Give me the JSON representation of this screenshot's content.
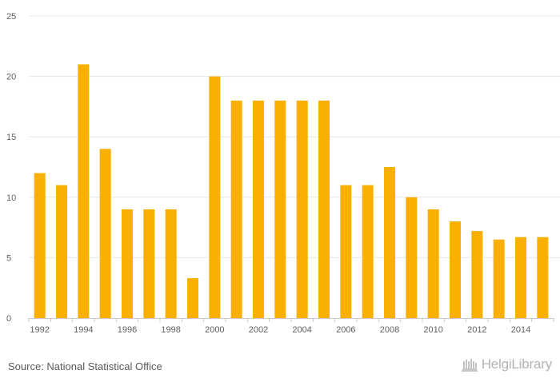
{
  "chart_data": {
    "type": "bar",
    "categories": [
      "1992",
      "1993",
      "1994",
      "1995",
      "1996",
      "1997",
      "1998",
      "1999",
      "2000",
      "2001",
      "2002",
      "2003",
      "2004",
      "2005",
      "2006",
      "2007",
      "2008",
      "2009",
      "2010",
      "2011",
      "2012",
      "2013",
      "2014",
      "2015"
    ],
    "values": [
      12,
      11,
      21,
      14,
      9,
      9,
      9,
      3.3,
      20,
      18,
      18,
      18,
      18,
      18,
      11,
      11,
      12.5,
      10,
      9,
      8,
      7.2,
      6.5,
      6.7,
      6.7
    ],
    "x_tick_labels": [
      "1992",
      "1994",
      "1996",
      "1998",
      "2000",
      "2002",
      "2004",
      "2006",
      "2008",
      "2010",
      "2012",
      "2014"
    ],
    "y_ticks": [
      0,
      5,
      10,
      15,
      20,
      25
    ],
    "ylim": [
      0,
      25
    ],
    "title": "",
    "xlabel": "",
    "ylabel": "",
    "grid": true,
    "legend": "none",
    "bar_color": "#f9b000"
  },
  "footer": {
    "source": "Source: National Statistical Office",
    "logo_text": "HelgiLibrary"
  }
}
